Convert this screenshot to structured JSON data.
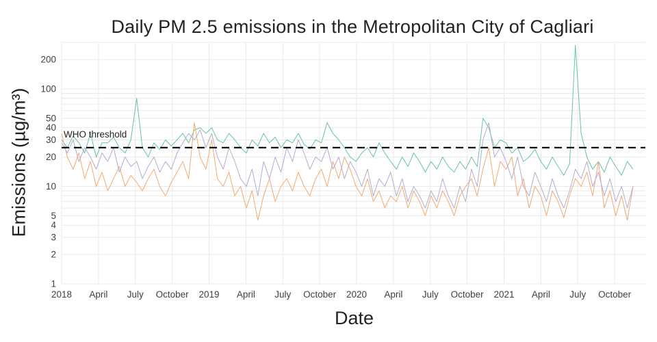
{
  "chart_data": {
    "type": "line",
    "title": "Daily PM 2.5 emissions in the Metropolitan City of Cagliari",
    "xlabel": "Date",
    "ylabel": "Emissions (µg/m³)",
    "yscale": "log",
    "ylim": [
      1,
      300
    ],
    "x_months_range": [
      0,
      47.5
    ],
    "data_months_span": 46.5,
    "grid": true,
    "legend": "none",
    "background_color": "#ffffff",
    "grid_color": "#e9e9e9",
    "tick_color": "#3f3f3f",
    "x_ticks": [
      {
        "month": 0,
        "label": "2018"
      },
      {
        "month": 3,
        "label": "April"
      },
      {
        "month": 6,
        "label": "July"
      },
      {
        "month": 9,
        "label": "October"
      },
      {
        "month": 12,
        "label": "2019"
      },
      {
        "month": 15,
        "label": "April"
      },
      {
        "month": 18,
        "label": "July"
      },
      {
        "month": 21,
        "label": "October"
      },
      {
        "month": 24,
        "label": "2020"
      },
      {
        "month": 27,
        "label": "April"
      },
      {
        "month": 30,
        "label": "July"
      },
      {
        "month": 33,
        "label": "October"
      },
      {
        "month": 36,
        "label": "2021"
      },
      {
        "month": 39,
        "label": "April"
      },
      {
        "month": 42,
        "label": "July"
      },
      {
        "month": 45,
        "label": "October"
      }
    ],
    "y_ticks": [
      {
        "v": 1,
        "label": "1"
      },
      {
        "v": 2,
        "label": "2"
      },
      {
        "v": 3,
        "label": "3"
      },
      {
        "v": 4,
        "label": "4"
      },
      {
        "v": 5,
        "label": "5"
      },
      {
        "v": 10,
        "label": "10"
      },
      {
        "v": 20,
        "label": "20"
      },
      {
        "v": 30,
        "label": "30"
      },
      {
        "v": 40,
        "label": "40"
      },
      {
        "v": 50,
        "label": "50"
      },
      {
        "v": 100,
        "label": "100"
      },
      {
        "v": 200,
        "label": "200"
      }
    ],
    "y_gridlines": [
      1,
      2,
      3,
      4,
      5,
      6,
      7,
      8,
      9,
      10,
      20,
      30,
      40,
      50,
      60,
      70,
      80,
      90,
      100,
      200,
      300
    ],
    "threshold": {
      "value": 25,
      "label": "WHO threshold",
      "color": "#000000",
      "style": "dashed"
    },
    "series": [
      {
        "name": "s1",
        "color": "#69c0ab",
        "values": [
          30,
          25,
          33,
          28,
          22,
          35,
          20,
          28,
          28,
          32,
          25,
          22,
          30,
          80,
          25,
          20,
          28,
          24,
          30,
          26,
          30,
          35,
          28,
          38,
          40,
          35,
          40,
          30,
          28,
          35,
          30,
          25,
          22,
          30,
          26,
          35,
          28,
          32,
          25,
          30,
          28,
          35,
          27,
          24,
          30,
          28,
          45,
          35,
          30,
          25,
          20,
          18,
          22,
          25,
          20,
          28,
          22,
          18,
          15,
          20,
          16,
          22,
          18,
          14,
          18,
          15,
          20,
          16,
          14,
          18,
          15,
          20,
          16,
          50,
          40,
          25,
          30,
          28,
          22,
          25,
          18,
          20,
          24,
          18,
          15,
          20,
          16,
          13,
          17,
          280,
          35,
          20,
          15,
          18,
          14,
          20,
          16,
          13,
          18,
          15
        ]
      },
      {
        "name": "s2",
        "color": "#f3a970",
        "values": [
          35,
          20,
          15,
          22,
          12,
          18,
          10,
          14,
          9,
          12,
          16,
          10,
          13,
          11,
          9,
          12,
          15,
          10,
          8,
          11,
          14,
          18,
          12,
          45,
          20,
          15,
          30,
          12,
          10,
          14,
          8,
          10,
          6,
          9,
          4.5,
          8,
          12,
          7,
          10,
          12,
          9,
          14,
          10,
          8,
          12,
          15,
          10,
          18,
          12,
          20,
          15,
          10,
          8,
          12,
          7,
          9,
          6,
          8,
          7,
          10,
          6,
          9,
          7,
          5,
          8,
          6,
          9,
          7,
          5,
          8,
          10,
          12,
          8,
          15,
          25,
          10,
          18,
          15,
          20,
          8,
          12,
          6,
          10,
          8,
          5,
          9,
          7,
          4.8,
          8,
          12,
          10,
          14,
          8,
          18,
          6,
          9,
          5,
          8,
          4.5,
          10
        ]
      },
      {
        "name": "s3",
        "color": "#b3abd2",
        "values": [
          28,
          22,
          30,
          18,
          25,
          20,
          15,
          22,
          18,
          25,
          14,
          20,
          16,
          18,
          12,
          16,
          20,
          14,
          18,
          15,
          22,
          28,
          35,
          30,
          38,
          25,
          35,
          20,
          15,
          25,
          18,
          12,
          10,
          15,
          8,
          18,
          12,
          20,
          14,
          25,
          18,
          30,
          22,
          15,
          20,
          18,
          25,
          15,
          20,
          12,
          18,
          14,
          10,
          15,
          8,
          12,
          10,
          14,
          8,
          12,
          7,
          10,
          8,
          6,
          9,
          7,
          12,
          8,
          6,
          10,
          7,
          15,
          10,
          30,
          45,
          20,
          25,
          18,
          12,
          20,
          10,
          8,
          14,
          10,
          7,
          12,
          8,
          6,
          9,
          15,
          12,
          18,
          10,
          14,
          8,
          12,
          7,
          10,
          6,
          10
        ]
      }
    ]
  }
}
